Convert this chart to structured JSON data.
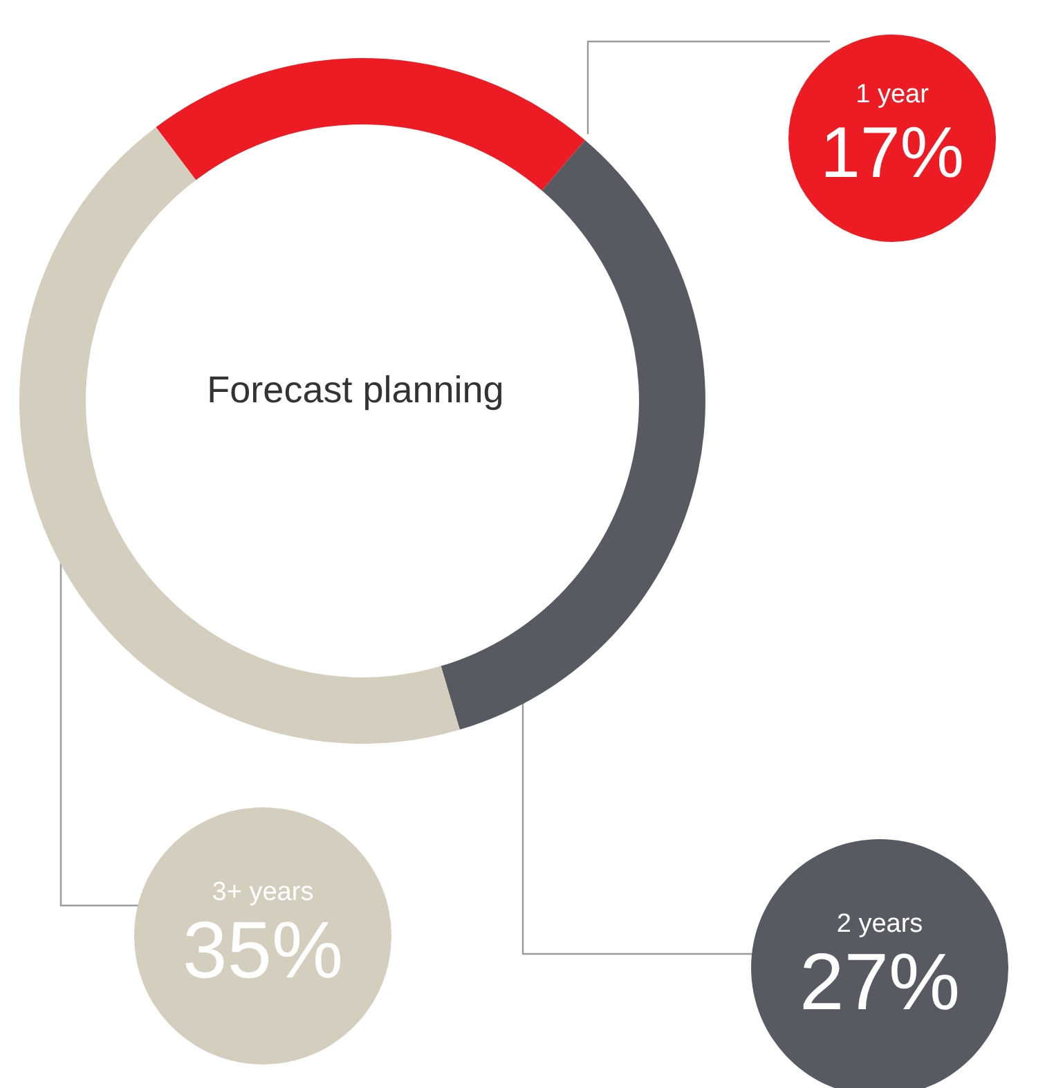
{
  "chart_data": {
    "type": "donut",
    "title": "Forecast planning",
    "categories": [
      "1 year",
      "2 years",
      "3+ years"
    ],
    "values": [
      17,
      27,
      35
    ],
    "colors": [
      "#ed1c24",
      "#575a61",
      "#d3cebd"
    ],
    "value_labels": [
      "17%",
      "27%",
      "35%"
    ]
  }
}
